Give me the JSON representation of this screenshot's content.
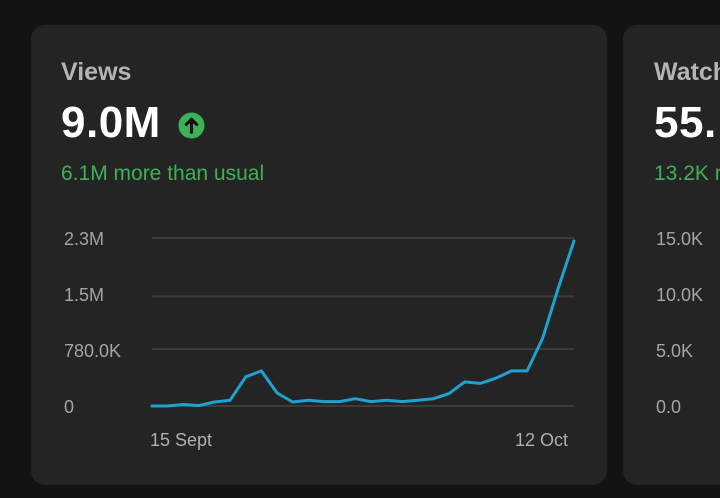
{
  "views": {
    "label": "Views",
    "value": "9.0M",
    "trend_icon": "arrow-up-circle-icon",
    "delta_text": "6.1M more than usual",
    "accent_color": "#3cb255",
    "line_color": "#1ea2d0"
  },
  "watch": {
    "label": "Watch",
    "value": "55.",
    "delta_text": "13.2K r",
    "y_ticks": [
      "15.0K",
      "10.0K",
      "5.0K",
      "0.0"
    ]
  },
  "chart_data": {
    "type": "line",
    "x_labels": [
      "15 Sept",
      "12 Oct"
    ],
    "y_ticks": [
      "2.3M",
      "1.5M",
      "780.0K",
      "0"
    ],
    "y_tick_values": [
      2300000,
      1500000,
      780000,
      0
    ],
    "ylim": [
      0,
      2300000
    ],
    "grid": true,
    "series": [
      {
        "values": [
          0,
          0,
          20000,
          5000,
          55000,
          80000,
          400000,
          480000,
          180000,
          55000,
          80000,
          60000,
          60000,
          100000,
          60000,
          80000,
          60000,
          80000,
          100000,
          170000,
          330000,
          310000,
          380000,
          480000,
          480000,
          930000,
          1620000,
          2260000
        ]
      }
    ]
  }
}
